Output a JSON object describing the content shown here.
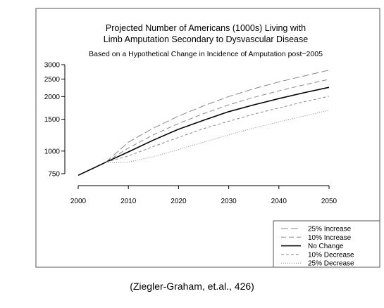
{
  "caption": "(Ziegler-Graham, et.al., 426)",
  "chart_data": {
    "type": "line",
    "title": "Projected Number of Americans (1000s) Living with",
    "title_line2": "Limb Amputation Secondary to Dysvascular Disease",
    "subtitle": "Based on a Hypothetical Change in Incidence of Amputation post−2005",
    "xlabel": "",
    "ylabel": "",
    "xlim": [
      2000,
      2050
    ],
    "ylim": [
      720,
      3000
    ],
    "yscale": "log",
    "xticks": [
      2000,
      2010,
      2020,
      2030,
      2040,
      2050
    ],
    "yticks": [
      750,
      1000,
      1500,
      2000,
      2500,
      3000
    ],
    "grid": false,
    "legend_position": "bottom-right",
    "base": {
      "x": [
        2000,
        2005.5
      ],
      "y": [
        735,
        868
      ]
    },
    "series": [
      {
        "name": "25% Increase",
        "dash": "long-dash",
        "color": "#888888",
        "x": [
          2005.5,
          2010,
          2015,
          2020,
          2025,
          2030,
          2035,
          2040,
          2045,
          2050
        ],
        "y": [
          868,
          1120,
          1340,
          1560,
          1780,
          2000,
          2210,
          2410,
          2600,
          2800
        ]
      },
      {
        "name": "10% Increase",
        "dash": "dash",
        "color": "#888888",
        "x": [
          2005.5,
          2010,
          2015,
          2020,
          2025,
          2030,
          2035,
          2040,
          2045,
          2050
        ],
        "y": [
          868,
          1040,
          1230,
          1420,
          1610,
          1800,
          1980,
          2150,
          2320,
          2490
        ]
      },
      {
        "name": "No Change",
        "dash": "solid",
        "color": "#000000",
        "x": [
          2005.5,
          2010,
          2015,
          2020,
          2025,
          2030,
          2035,
          2040,
          2045,
          2050
        ],
        "y": [
          868,
          990,
          1150,
          1320,
          1480,
          1650,
          1800,
          1950,
          2100,
          2250
        ]
      },
      {
        "name": "10% Decrease",
        "dash": "short-dash",
        "color": "#888888",
        "x": [
          2005.5,
          2010,
          2015,
          2020,
          2025,
          2030,
          2035,
          2040,
          2045,
          2050
        ],
        "y": [
          868,
          940,
          1060,
          1190,
          1330,
          1460,
          1600,
          1730,
          1870,
          2010
        ]
      },
      {
        "name": "25% Decrease",
        "dash": "dotted",
        "color": "#888888",
        "x": [
          2005.5,
          2007,
          2010,
          2015,
          2020,
          2025,
          2030,
          2035,
          2040,
          2045,
          2050
        ],
        "y": [
          868,
          860,
          870,
          930,
          1020,
          1120,
          1230,
          1340,
          1450,
          1560,
          1680
        ]
      }
    ]
  }
}
